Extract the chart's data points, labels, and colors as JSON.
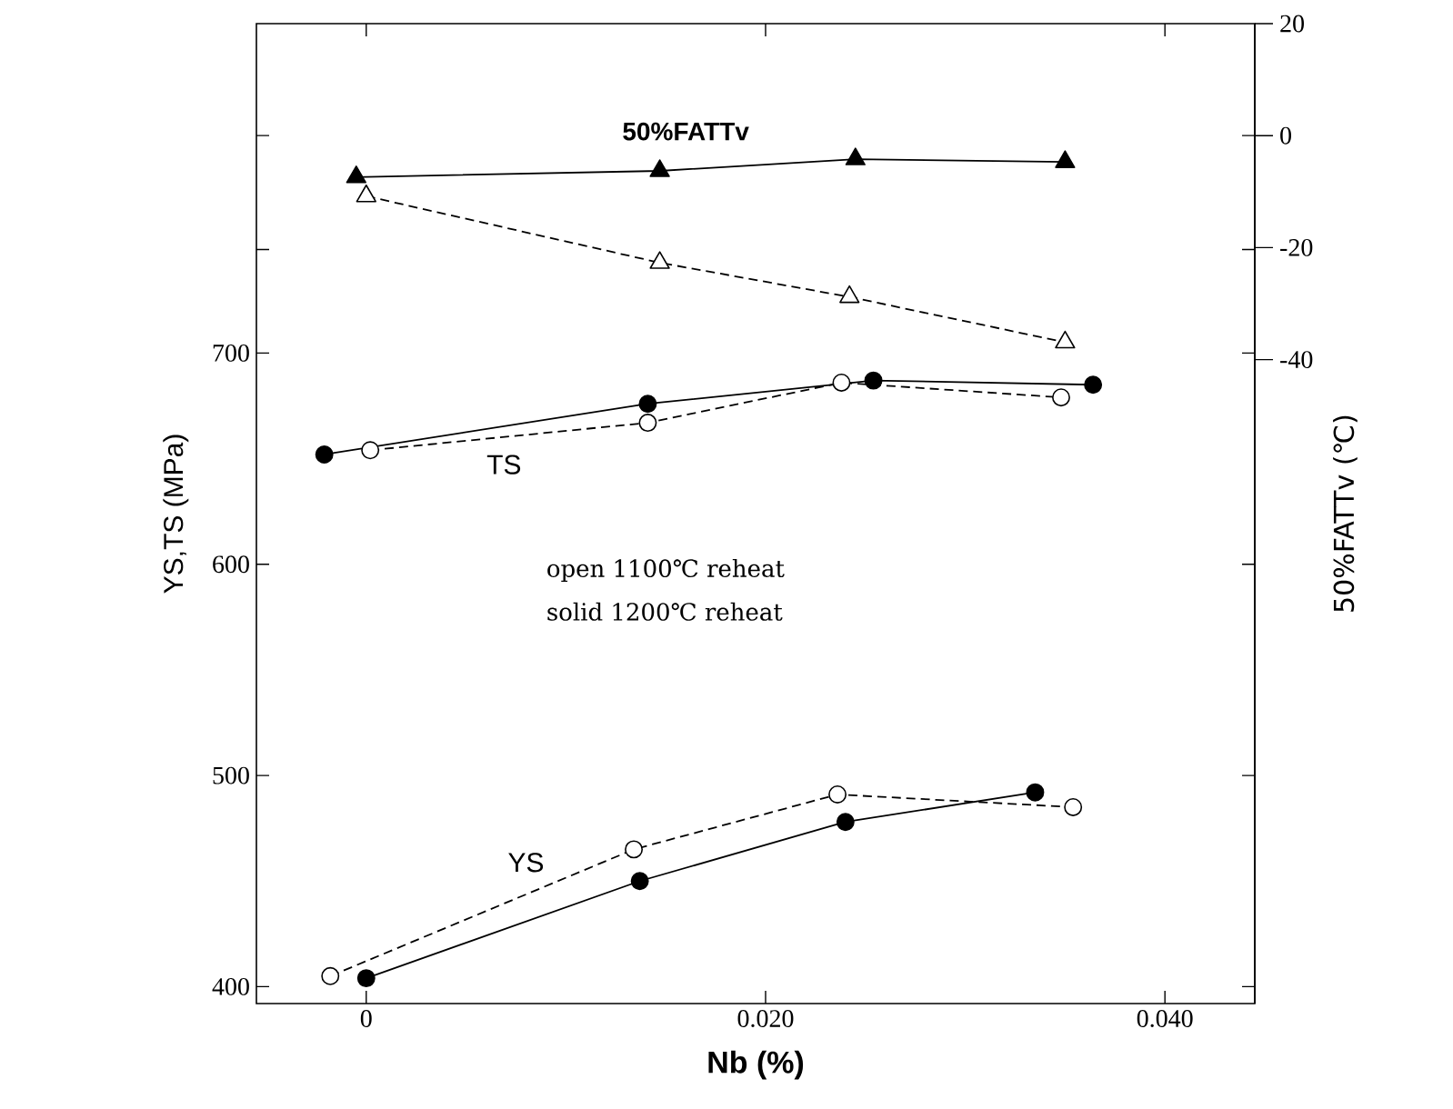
{
  "chart_data": {
    "type": "line",
    "xlabel": "Nb (%)",
    "ylabel": "YS,TS (MPa)",
    "y2label": "50%FATTv (℃)",
    "xlim": [
      -0.0055,
      0.0445
    ],
    "xticks": [
      0,
      {
        "value": 0.02,
        "label": "0.020"
      },
      {
        "value": 0.04,
        "label": "0.040"
      }
    ],
    "ylim": [
      392,
      856
    ],
    "yticks": [
      400,
      500,
      600,
      700,
      {
        "value": 749,
        "label": null
      },
      {
        "value": 803,
        "label": null
      }
    ],
    "y2lim": [
      -155,
      20
    ],
    "y2ticks": [
      -40,
      -20,
      0,
      20
    ],
    "annotations": [
      "50%FATTv",
      "TS",
      "YS",
      "open 1100℃ reheat",
      "solid 1200℃ reheat"
    ],
    "series": [
      {
        "color": "#000000",
        "marker": "triangle",
        "line_style": "solid",
        "axis": "y2",
        "x": [
          -0.0005,
          0.0147,
          0.0245,
          0.035
        ],
        "values": [
          -7.4,
          -6.3,
          -4.2,
          -4.7
        ]
      },
      {
        "color": "#000000",
        "marker": "triangle",
        "line_style": "dashed",
        "axis": "y2",
        "x": [
          0.0,
          0.0147,
          0.0242,
          0.035
        ],
        "values": [
          -10.8,
          -22.7,
          -28.8,
          -36.9
        ]
      },
      {
        "color": "#000000",
        "marker": "circle",
        "line_style": "solid",
        "x": [
          -0.0021,
          0.0141,
          0.0254,
          0.0364
        ],
        "values": [
          652,
          676,
          687,
          685
        ]
      },
      {
        "color": "#000000",
        "marker": "circle",
        "line_style": "dashed",
        "x": [
          0.0002,
          0.0141,
          0.0238,
          0.0348
        ],
        "values": [
          654,
          667,
          686,
          679
        ]
      },
      {
        "color": "#000000",
        "marker": "circle",
        "line_style": "solid",
        "x": [
          0.0,
          0.0137,
          0.024,
          0.0335
        ],
        "values": [
          404,
          450,
          478,
          492
        ]
      },
      {
        "color": "#000000",
        "marker": "circle",
        "line_style": "dashed",
        "x": [
          -0.0018,
          0.0134,
          0.0236,
          0.0354
        ],
        "values": [
          405,
          465,
          491,
          485
        ]
      }
    ]
  }
}
